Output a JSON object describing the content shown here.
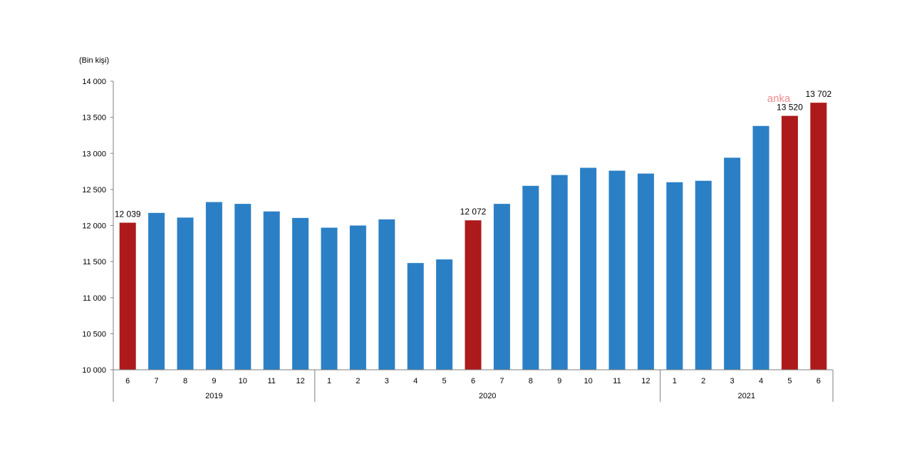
{
  "chart_data": {
    "type": "bar",
    "ylabel": "(Bin kişi)",
    "ylim": [
      10000,
      14000
    ],
    "yticks": [
      10000,
      10500,
      11000,
      11500,
      12000,
      12500,
      13000,
      13500,
      14000
    ],
    "ytick_labels": [
      "10 000",
      "10 500",
      "11 000",
      "11 500",
      "12 000",
      "12 500",
      "13 000",
      "13 500",
      "14 000"
    ],
    "categories": [
      "6",
      "7",
      "8",
      "9",
      "10",
      "11",
      "12",
      "1",
      "2",
      "3",
      "4",
      "5",
      "6",
      "7",
      "8",
      "9",
      "10",
      "11",
      "12",
      "1",
      "2",
      "3",
      "4",
      "5",
      "6"
    ],
    "values": [
      12039,
      12175,
      12110,
      12325,
      12300,
      12195,
      12105,
      11970,
      12000,
      12085,
      11480,
      11530,
      12072,
      12300,
      12550,
      12700,
      12800,
      12760,
      12720,
      12600,
      12620,
      12940,
      13380,
      13520,
      13702
    ],
    "highlight": [
      true,
      false,
      false,
      false,
      false,
      false,
      false,
      false,
      false,
      false,
      false,
      false,
      true,
      false,
      false,
      false,
      false,
      false,
      false,
      false,
      false,
      false,
      false,
      true,
      true
    ],
    "data_labels": [
      "12 039",
      "",
      "",
      "",
      "",
      "",
      "",
      "",
      "",
      "",
      "",
      "",
      "12 072",
      "",
      "",
      "",
      "",
      "",
      "",
      "",
      "",
      "",
      "",
      "13 520",
      "13 702"
    ],
    "groups": [
      {
        "label": "2019",
        "start": 0,
        "end": 6
      },
      {
        "label": "2020",
        "start": 7,
        "end": 18
      },
      {
        "label": "2021",
        "start": 19,
        "end": 24
      }
    ],
    "colors": {
      "normal": "#2b80c5",
      "highlight": "#ad1a1c",
      "watermark": "#f08a8a"
    },
    "grid": false,
    "legend": "none",
    "watermark": "anka"
  }
}
